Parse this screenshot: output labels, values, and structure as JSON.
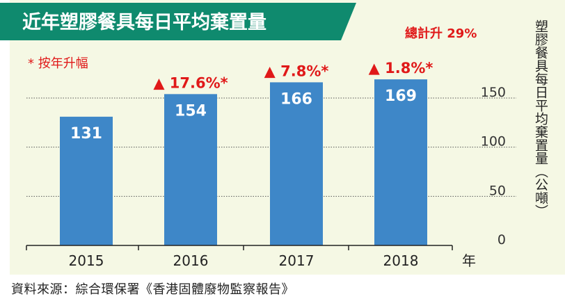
{
  "chart_data": {
    "type": "bar",
    "title": "近年塑膠餐具每日平均棄置量",
    "categories": [
      "2015",
      "2016",
      "2017",
      "2018"
    ],
    "values": [
      131,
      154,
      166,
      169
    ],
    "data_labels": [
      "131",
      "154",
      "166",
      "169"
    ],
    "growth_labels": [
      "",
      "▲ 17.6%*",
      "▲ 7.8%*",
      "▲ 1.8%*"
    ],
    "growth_note": "* 按年升幅",
    "total_note": "總計升 29%",
    "y_ticks": [
      "0",
      "50",
      "100",
      "150"
    ],
    "ylim": [
      0,
      150
    ],
    "x_unit": "年",
    "ylabel": "塑膠餐具每日平均棄置量（公噸）",
    "grid": true,
    "colors": {
      "bar": "#3e87c8",
      "title_band": "#0f8a6e",
      "highlight": "#e01919",
      "panel": "#f5f8e4"
    }
  },
  "source": "資料來源：綜合環保署《香港固體廢物監察報告》"
}
